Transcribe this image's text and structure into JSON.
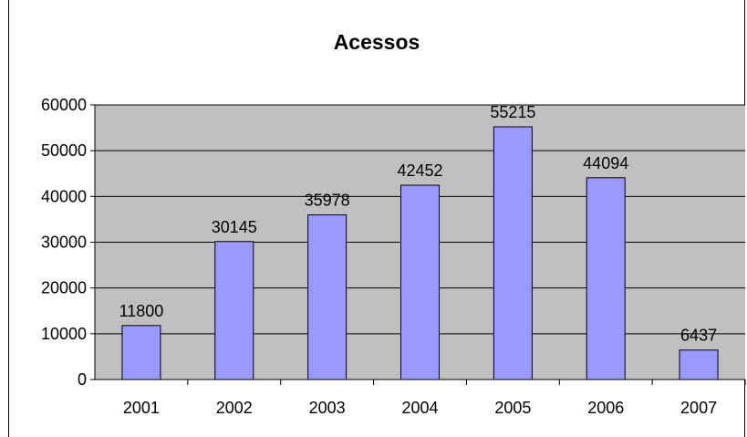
{
  "chart_data": {
    "type": "bar",
    "title": "Acessos",
    "categories": [
      "2001",
      "2002",
      "2003",
      "2004",
      "2005",
      "2006",
      "2007"
    ],
    "values": [
      11800,
      30145,
      35978,
      42452,
      55215,
      44094,
      6437
    ],
    "data_labels": [
      "11800",
      "30145",
      "35978",
      "42452",
      "55215",
      "44094",
      "6437"
    ],
    "y_ticks": [
      "0",
      "10000",
      "20000",
      "30000",
      "40000",
      "50000",
      "60000"
    ],
    "ylim": [
      0,
      60000
    ],
    "xlabel": "",
    "ylabel": "",
    "grid": true,
    "legend": "none",
    "colors": {
      "bar_fill": "#9999FF",
      "plot_background": "#C0C0C0",
      "gridline": "#000000",
      "bar_stroke": "#000000"
    }
  }
}
